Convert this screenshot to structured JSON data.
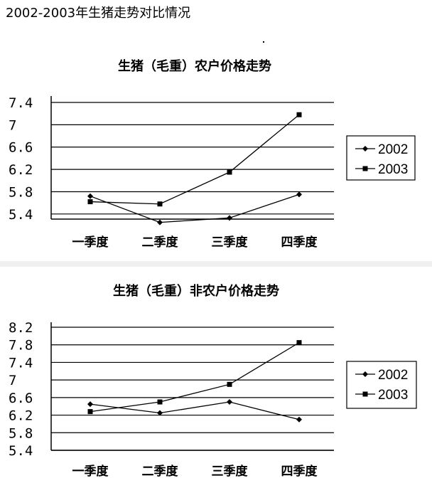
{
  "page_title": "2002-2003年生猪走势对比情况",
  "chart_data": [
    {
      "type": "line",
      "title": "生猪（毛重）农户价格走势",
      "categories": [
        "一季度",
        "二季度",
        "三季度",
        "四季度"
      ],
      "y_ticks": [
        "7.4",
        "7",
        "6.6",
        "6.2",
        "5.8",
        "5.4"
      ],
      "ylim": [
        5.0,
        7.4
      ],
      "series": [
        {
          "name": "2002",
          "marker": "diamond",
          "values": [
            5.72,
            5.25,
            5.33,
            5.75
          ]
        },
        {
          "name": "2003",
          "marker": "square",
          "values": [
            5.62,
            5.58,
            6.15,
            7.18
          ]
        }
      ],
      "grid": true,
      "legend": "right"
    },
    {
      "type": "line",
      "title": "生猪（毛重）非农户价格走势",
      "categories": [
        "一季度",
        "二季度",
        "三季度",
        "四季度"
      ],
      "y_ticks": [
        "8.2",
        "7.8",
        "7.4",
        "7",
        "6.6",
        "6.2",
        "5.8",
        "5.4"
      ],
      "ylim": [
        5.4,
        8.2
      ],
      "series": [
        {
          "name": "2002",
          "marker": "diamond",
          "values": [
            6.45,
            6.25,
            6.5,
            6.1
          ]
        },
        {
          "name": "2003",
          "marker": "square",
          "values": [
            6.28,
            6.5,
            6.9,
            7.85
          ]
        }
      ],
      "grid": true,
      "legend": "right"
    }
  ]
}
